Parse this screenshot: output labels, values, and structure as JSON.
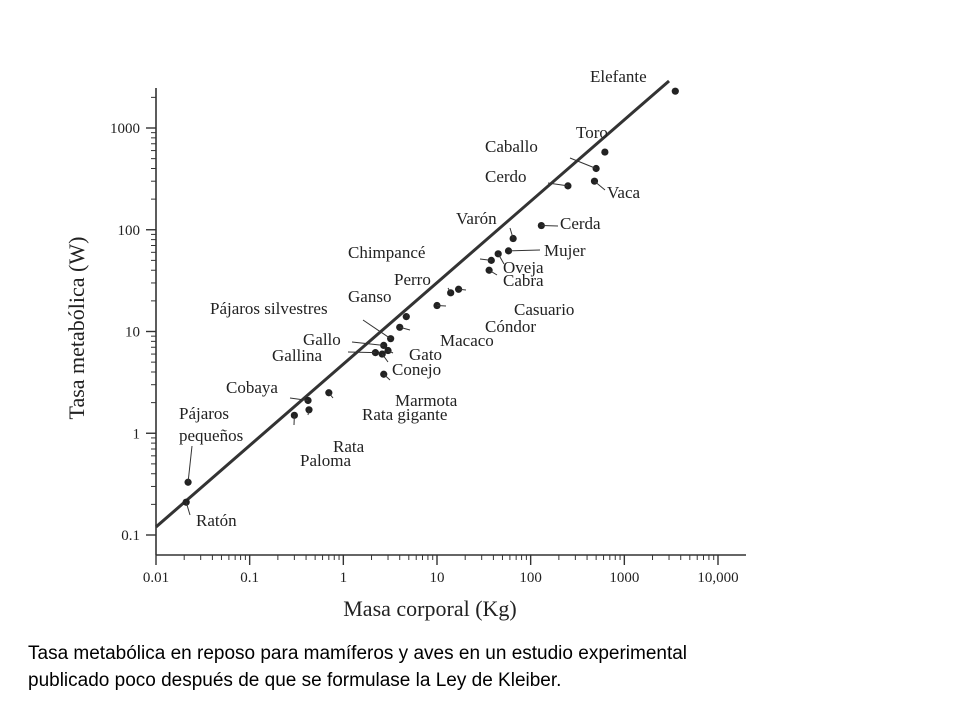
{
  "chart_data": {
    "type": "scatter",
    "xlabel": "Masa corporal (Kg)",
    "ylabel": "Tasa metabólica (W)",
    "x_scale": "log",
    "y_scale": "log",
    "xlim": [
      0.01,
      10000
    ],
    "ylim": [
      0.1,
      3000
    ],
    "x_ticks": [
      {
        "value": 0.01,
        "label": "0.01"
      },
      {
        "value": 0.1,
        "label": "0.1"
      },
      {
        "value": 1,
        "label": "1"
      },
      {
        "value": 10,
        "label": "10"
      },
      {
        "value": 100,
        "label": "100"
      },
      {
        "value": 1000,
        "label": "1000"
      },
      {
        "value": 10000,
        "label": "10,000"
      }
    ],
    "y_ticks": [
      {
        "value": 0.1,
        "label": "0.1"
      },
      {
        "value": 1,
        "label": "1"
      },
      {
        "value": 10,
        "label": "10"
      },
      {
        "value": 100,
        "label": "100"
      },
      {
        "value": 1000,
        "label": "1000"
      }
    ],
    "grid": false,
    "trend_line": {
      "x": [
        0.01,
        3000
      ],
      "y": [
        0.12,
        2900
      ]
    },
    "points": [
      {
        "label": "Ratón",
        "x": 0.021,
        "y": 0.21
      },
      {
        "label": "Pájaros pequeños",
        "x": 0.022,
        "y": 0.33
      },
      {
        "label": "Cobaya",
        "x": 0.42,
        "y": 2.1
      },
      {
        "label": "Rata",
        "x": 0.43,
        "y": 1.7
      },
      {
        "label": "Paloma",
        "x": 0.3,
        "y": 1.5
      },
      {
        "label": "Rata gigante",
        "x": 0.7,
        "y": 2.5
      },
      {
        "label": "Gallina",
        "x": 2.2,
        "y": 6.2
      },
      {
        "label": "Gallo",
        "x": 2.7,
        "y": 7.3
      },
      {
        "label": "Gato",
        "x": 3.0,
        "y": 6.5
      },
      {
        "label": "Conejo",
        "x": 2.6,
        "y": 6.0
      },
      {
        "label": "Marmota",
        "x": 2.7,
        "y": 3.8
      },
      {
        "label": "Macaco",
        "x": 4.0,
        "y": 11
      },
      {
        "label": "Pájaros silvestres",
        "x": 3.2,
        "y": 8.5
      },
      {
        "label": "Ganso",
        "x": 4.7,
        "y": 14
      },
      {
        "label": "Perro",
        "x": 14,
        "y": 24
      },
      {
        "label": "Casuario",
        "x": 17,
        "y": 26
      },
      {
        "label": "Cóndor",
        "x": 10,
        "y": 18
      },
      {
        "label": "Chimpancé",
        "x": 38,
        "y": 50
      },
      {
        "label": "Oveja",
        "x": 45,
        "y": 58
      },
      {
        "label": "Cabra",
        "x": 36,
        "y": 40
      },
      {
        "label": "Mujer",
        "x": 58,
        "y": 62
      },
      {
        "label": "Varón",
        "x": 65,
        "y": 82
      },
      {
        "label": "Cerda",
        "x": 130,
        "y": 110
      },
      {
        "label": "Cerdo",
        "x": 250,
        "y": 270
      },
      {
        "label": "Caballo",
        "x": 500,
        "y": 400
      },
      {
        "label": "Vaca",
        "x": 480,
        "y": 300
      },
      {
        "label": "Toro",
        "x": 620,
        "y": 580
      },
      {
        "label": "Elefante",
        "x": 3500,
        "y": 2300
      }
    ]
  },
  "caption": {
    "line1": "Tasa metabólica en reposo para mamíferos y aves en un estudio experimental",
    "line2": "publicado poco después de que se formulase la Ley de Kleiber."
  }
}
